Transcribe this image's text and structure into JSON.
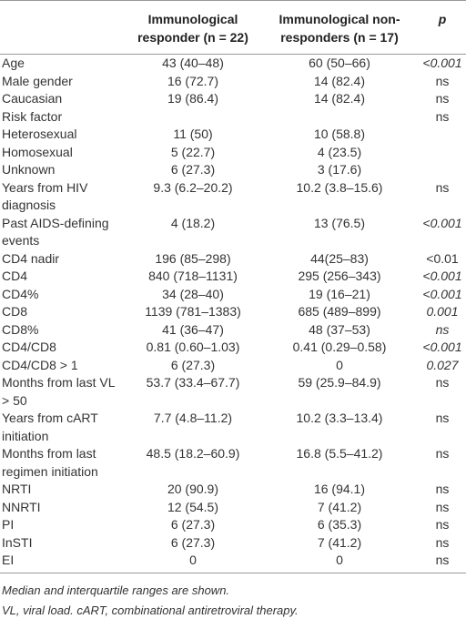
{
  "table": {
    "header": [
      "",
      "Immunological responder (n = 22)",
      "Immunological non-responders (n = 17)",
      "p"
    ],
    "rows": [
      {
        "cells": [
          "Age",
          "43 (40–48)",
          "60 (50–66)",
          "<0.001"
        ],
        "p_italic": true
      },
      {
        "cells": [
          "Male gender",
          "16 (72.7)",
          "14 (82.4)",
          "ns"
        ],
        "p_italic": false
      },
      {
        "cells": [
          "Caucasian",
          "19 (86.4)",
          "14 (82.4)",
          "ns"
        ],
        "p_italic": false
      },
      {
        "cells": [
          "Risk factor",
          null,
          null,
          "ns"
        ],
        "p_italic": false
      },
      {
        "cells": [
          "Heterosexual",
          "11 (50)",
          "10 (58.8)",
          null
        ],
        "p_italic": false
      },
      {
        "cells": [
          "Homosexual",
          "5 (22.7)",
          "4 (23.5)",
          null
        ],
        "p_italic": false
      },
      {
        "cells": [
          "Unknown",
          "6 (27.3)",
          "3 (17.6)",
          null
        ],
        "p_italic": false
      },
      {
        "cells": [
          "Years from HIV diagnosis",
          "9.3 (6.2–20.2)",
          "10.2 (3.8–15.6)",
          "ns"
        ],
        "p_italic": false
      },
      {
        "cells": [
          "Past AIDS-defining events",
          "4 (18.2)",
          "13 (76.5)",
          "<0.001"
        ],
        "p_italic": true
      },
      {
        "cells": [
          "CD4 nadir",
          "196 (85–298)",
          "44(25–83)",
          "<0.01"
        ],
        "p_italic": false
      },
      {
        "cells": [
          "CD4",
          "840 (718–1131)",
          "295 (256–343)",
          "<0.001"
        ],
        "p_italic": true
      },
      {
        "cells": [
          "CD4%",
          "34 (28–40)",
          "19 (16–21)",
          "<0.001"
        ],
        "p_italic": true
      },
      {
        "cells": [
          "CD8",
          "1139 (781–1383)",
          "685 (489–899)",
          "0.001"
        ],
        "p_italic": true
      },
      {
        "cells": [
          "CD8%",
          "41 (36–47)",
          "48 (37–53)",
          "ns"
        ],
        "p_italic": true
      },
      {
        "cells": [
          "CD4/CD8",
          "0.81 (0.60–1.03)",
          "0.41 (0.29–0.58)",
          "<0.001"
        ],
        "p_italic": true
      },
      {
        "cells": [
          "CD4/CD8 > 1",
          "6 (27.3)",
          "0",
          "0.027"
        ],
        "p_italic": true
      },
      {
        "cells": [
          "Months from last VL > 50",
          "53.7 (33.4–67.7)",
          "59 (25.9–84.9)",
          "ns"
        ],
        "p_italic": false
      },
      {
        "cells": [
          "Years from cART initiation",
          "7.7 (4.8–11.2)",
          "10.2 (3.3–13.4)",
          "ns"
        ],
        "p_italic": false
      },
      {
        "cells": [
          "Months from last regimen initiation",
          "48.5 (18.2–60.9)",
          "16.8 (5.5–41.2)",
          "ns"
        ],
        "p_italic": false
      },
      {
        "cells": [
          "NRTI",
          "20 (90.9)",
          "16 (94.1)",
          "ns"
        ],
        "p_italic": false
      },
      {
        "cells": [
          "NNRTI",
          "12 (54.5)",
          "7 (41.2)",
          "ns"
        ],
        "p_italic": false
      },
      {
        "cells": [
          "PI",
          "6 (27.3)",
          "6 (35.3)",
          "ns"
        ],
        "p_italic": false
      },
      {
        "cells": [
          "InSTI",
          "6 (27.3)",
          "7 (41.2)",
          "ns"
        ],
        "p_italic": false
      },
      {
        "cells": [
          "EI",
          "0",
          "0",
          "ns"
        ],
        "p_italic": false
      }
    ],
    "footnotes": [
      "Median and interquartile ranges are shown.",
      "VL, viral load. cART, combinational antiretroviral therapy."
    ]
  }
}
